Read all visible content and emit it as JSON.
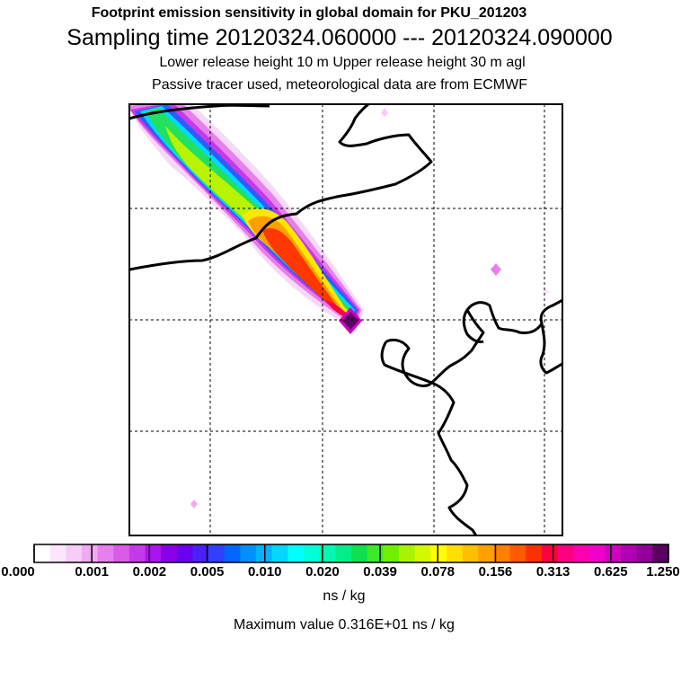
{
  "header": {
    "title_line1": "Footprint emission sensitivity in global domain for PKU_201203",
    "title_line2": "Sampling time   20120324.060000 --- 20120324.090000",
    "title_line3": "Lower release height   10 m          Upper release height   30 m    agl",
    "title_line4": "Passive tracer used, meteorological data are from ECMWF"
  },
  "colorbar": {
    "tick_labels": [
      "0.000",
      "0.001",
      "0.002",
      "0.005",
      "0.010",
      "0.020",
      "0.039",
      "0.078",
      "0.156",
      "0.313",
      "0.625",
      "1.250"
    ],
    "colors": [
      "#ffffff",
      "#fbe6fb",
      "#f6ccf6",
      "#f0aaf0",
      "#e680ec",
      "#d95ce8",
      "#c53ae8",
      "#aa14f0",
      "#8800e8",
      "#6a00f0",
      "#4a20f8",
      "#3040ff",
      "#0066ff",
      "#0090ff",
      "#00b4ff",
      "#00d8ff",
      "#00ffff",
      "#00ffd8",
      "#00f8b0",
      "#00ee88",
      "#10e050",
      "#3ce828",
      "#70f000",
      "#a8f400",
      "#d4f800",
      "#ffff00",
      "#ffe000",
      "#ffc000",
      "#ffa000",
      "#ff8000",
      "#ff5a00",
      "#ff3000",
      "#ff0040",
      "#ff0080",
      "#ff00b0",
      "#f000c8",
      "#d000c0",
      "#b000b0",
      "#900098",
      "#5a0060"
    ],
    "units": "ns / kg",
    "max_value_text": "Maximum value  0.316E+01 ns / kg"
  },
  "map": {
    "receptor_marker": "receptor-point",
    "max_value": 3.16
  }
}
